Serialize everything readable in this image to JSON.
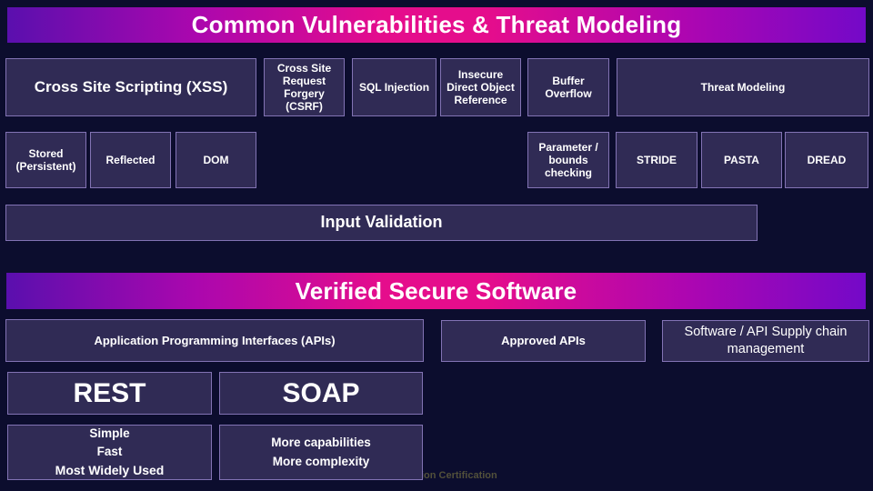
{
  "slide": {
    "watermark": "ion Certification"
  },
  "colors": {
    "background": "#0c0d2e",
    "box_fill": "#302b55",
    "box_border": "#8273b4",
    "banner_gradient_left": "#5a0fae",
    "banner_gradient_mid": "#e50d8c",
    "banner_gradient_right": "#7409c8",
    "text": "#ffffff",
    "watermark_text": "#52503a"
  },
  "section_vulnerabilities": {
    "title": "Common Vulnerabilities & Threat Modeling",
    "xss": "Cross Site Scripting (XSS)",
    "csrf": "Cross Site Request Forgery (CSRF)",
    "sql_injection": "SQL Injection",
    "idor": "Insecure Direct Object Reference",
    "buffer_overflow": "Buffer Overflow",
    "threat_modeling": "Threat Modeling",
    "xss_types": [
      "Stored (Persistent)",
      "Reflected",
      "DOM"
    ],
    "buffer_defense": "Parameter / bounds checking",
    "threat_models": [
      "STRIDE",
      "PASTA",
      "DREAD"
    ],
    "mitigation": "Input Validation"
  },
  "section_secure_software": {
    "title": "Verified Secure Software",
    "apis": "Application Programming Interfaces (APIs)",
    "approved_apis": "Approved APIs",
    "supply_chain": "Software / API Supply chain management",
    "rest": "REST",
    "soap": "SOAP",
    "rest_details": [
      "Simple",
      "Fast",
      "Most Widely Used"
    ],
    "soap_details": [
      "More capabilities",
      "More complexity"
    ]
  }
}
